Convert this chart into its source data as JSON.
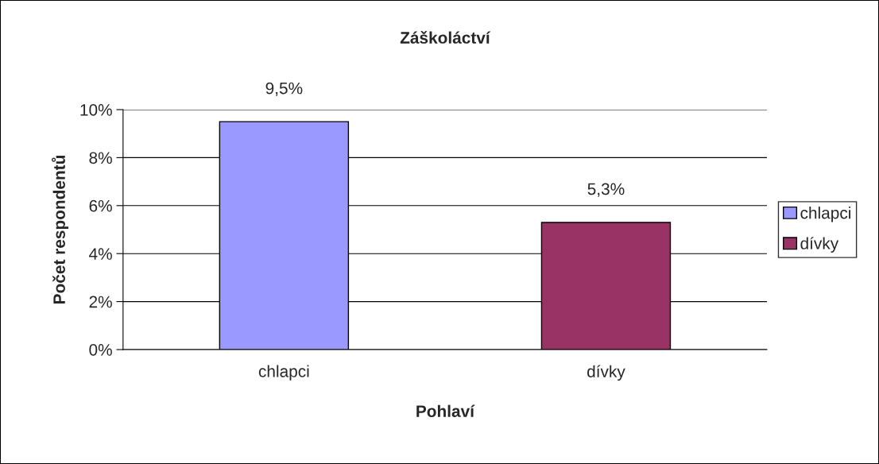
{
  "chart_data": {
    "type": "bar",
    "title": "Záškoláctví",
    "xlabel": "Pohlaví",
    "ylabel": "Počet respondentů",
    "categories": [
      "chlapci",
      "dívky"
    ],
    "series": [
      {
        "name": "chlapci",
        "color": "#9999ff",
        "values": [
          9.5,
          null
        ],
        "value_labels": [
          "9,5%",
          null
        ]
      },
      {
        "name": "dívky",
        "color": "#993366",
        "values": [
          null,
          5.3
        ],
        "value_labels": [
          null,
          "5,3%"
        ]
      }
    ],
    "ylim": [
      0,
      10
    ],
    "yticks": [
      {
        "value": 0,
        "label": "0%"
      },
      {
        "value": 2,
        "label": "2%"
      },
      {
        "value": 4,
        "label": "4%"
      },
      {
        "value": 6,
        "label": "6%"
      },
      {
        "value": 8,
        "label": "8%"
      },
      {
        "value": 10,
        "label": "10%"
      }
    ],
    "grid": "y",
    "legend": "right"
  }
}
